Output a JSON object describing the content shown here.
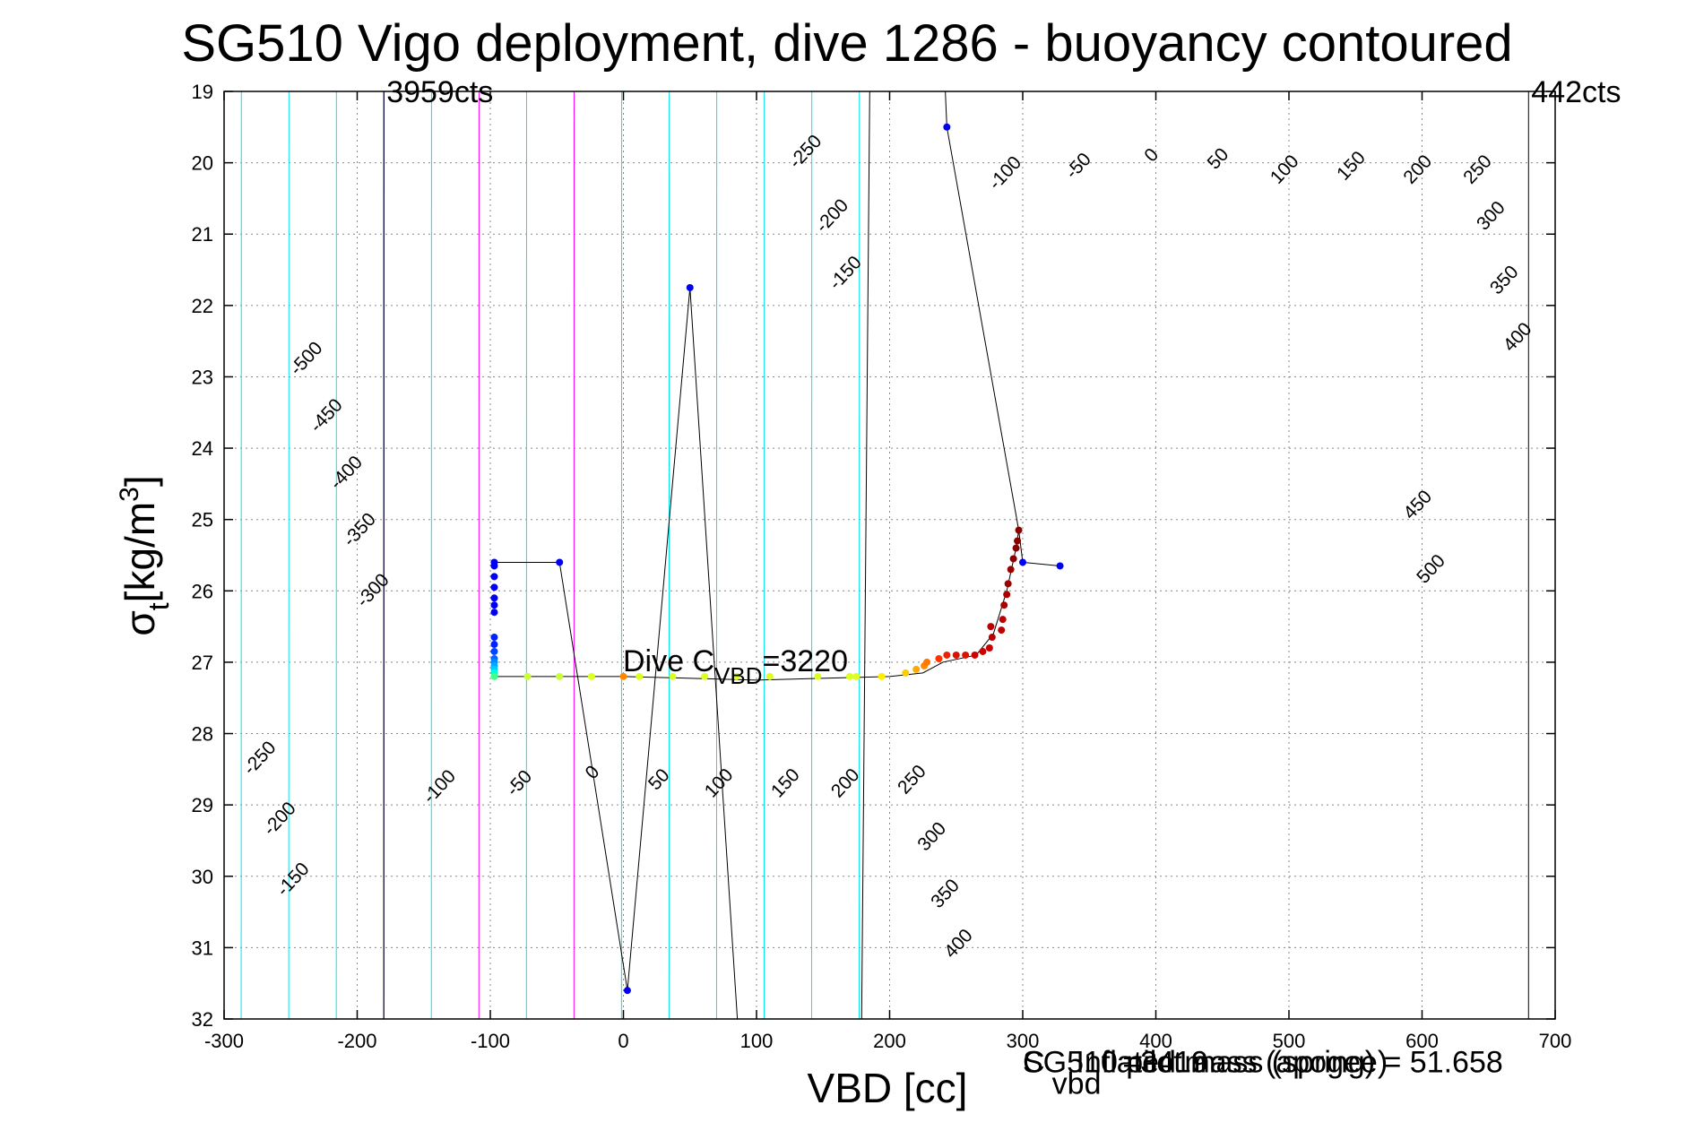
{
  "chart_data": {
    "type": "scatter",
    "title": "SG510 Vigo deployment, dive 1286 - buoyancy contoured",
    "xlabel": "VBD [cc]",
    "ylabel_main": "σ",
    "ylabel_sub": "t",
    "ylabel_unit": "[kg/m",
    "ylabel_sup": "3",
    "ylabel_close": "]",
    "xlim": [
      -300,
      700
    ],
    "ylim": [
      19,
      32
    ],
    "y_reversed": true,
    "grid": true,
    "xticks": [
      -300,
      -200,
      -100,
      0,
      100,
      200,
      300,
      400,
      500,
      600,
      700
    ],
    "yticks": [
      19,
      20,
      21,
      22,
      23,
      24,
      25,
      26,
      27,
      28,
      29,
      30,
      31,
      32
    ],
    "vbd_limits": [
      {
        "vbd": -180,
        "label": "3959cts"
      },
      {
        "vbd": 680,
        "label": "442cts"
      }
    ],
    "dive_cvbd": {
      "vbd": 0,
      "sigma": 27.15,
      "prefix": "Dive C",
      "sub": "VBD",
      "suffix": "=3220"
    },
    "vline_vbd": 181,
    "overlap_texts": [
      {
        "label": "SG510 pilot mass (spring) = 51.658",
        "vbd": 300,
        "sigma": 32.75
      },
      {
        "label": "Inflated mass (apogee)",
        "vbd": 340,
        "sigma": 32.75
      },
      {
        "label": "C",
        "vbd": 300,
        "sigma": 32.75
      },
      {
        "label": "vbd",
        "vbd": 322,
        "sigma": 33.05
      },
      {
        "label": "=3419",
        "vbd": 375,
        "sigma": 32.75
      }
    ],
    "contours": {
      "levels": [
        -500,
        -450,
        -400,
        -350,
        -300,
        -250,
        -200,
        -150,
        -100,
        -50,
        0,
        50,
        100,
        150,
        200,
        250,
        300,
        350,
        400,
        450,
        500
      ],
      "colors": {
        "default": "#00e5ee",
        "zero": "#0000ff",
        "highlight": "#ff00ff"
      },
      "highlight_levels": [
        100,
        200
      ],
      "labels": [
        {
          "text": "-500",
          "vbd": -235,
          "sigma": 22.8
        },
        {
          "text": "-450",
          "vbd": -220,
          "sigma": 23.6
        },
        {
          "text": "-400",
          "vbd": -205,
          "sigma": 24.4
        },
        {
          "text": "-350",
          "vbd": -195,
          "sigma": 25.2
        },
        {
          "text": "-300",
          "vbd": -185,
          "sigma": 26.05
        },
        {
          "text": "-250",
          "vbd": 140,
          "sigma": 19.9
        },
        {
          "text": "-200",
          "vbd": 160,
          "sigma": 20.8
        },
        {
          "text": "-150",
          "vbd": 170,
          "sigma": 21.6
        },
        {
          "text": "-100",
          "vbd": 290,
          "sigma": 20.2
        },
        {
          "text": "-50",
          "vbd": 345,
          "sigma": 20.1
        },
        {
          "text": "0",
          "vbd": 400,
          "sigma": 19.95
        },
        {
          "text": "50",
          "vbd": 450,
          "sigma": 20.0
        },
        {
          "text": "100",
          "vbd": 500,
          "sigma": 20.15
        },
        {
          "text": "150",
          "vbd": 550,
          "sigma": 20.1
        },
        {
          "text": "200",
          "vbd": 600,
          "sigma": 20.15
        },
        {
          "text": "250",
          "vbd": 645,
          "sigma": 20.15
        },
        {
          "text": "300",
          "vbd": 655,
          "sigma": 20.8
        },
        {
          "text": "350",
          "vbd": 665,
          "sigma": 21.7
        },
        {
          "text": "400",
          "vbd": 675,
          "sigma": 22.5
        },
        {
          "text": "450",
          "vbd": 600,
          "sigma": 24.85
        },
        {
          "text": "500",
          "vbd": 610,
          "sigma": 25.75
        },
        {
          "text": "-250",
          "vbd": -270,
          "sigma": 28.4
        },
        {
          "text": "-200",
          "vbd": -255,
          "sigma": 29.25
        },
        {
          "text": "-150",
          "vbd": -245,
          "sigma": 30.1
        },
        {
          "text": "-100",
          "vbd": -135,
          "sigma": 28.8
        },
        {
          "text": "-50",
          "vbd": -75,
          "sigma": 28.75
        },
        {
          "text": "0",
          "vbd": -20,
          "sigma": 28.6
        },
        {
          "text": "50",
          "vbd": 30,
          "sigma": 28.7
        },
        {
          "text": "100",
          "vbd": 75,
          "sigma": 28.75
        },
        {
          "text": "150",
          "vbd": 125,
          "sigma": 28.75
        },
        {
          "text": "200",
          "vbd": 170,
          "sigma": 28.75
        },
        {
          "text": "250",
          "vbd": 220,
          "sigma": 28.7
        },
        {
          "text": "300",
          "vbd": 235,
          "sigma": 29.5
        },
        {
          "text": "350",
          "vbd": 245,
          "sigma": 30.3
        },
        {
          "text": "400",
          "vbd": 255,
          "sigma": 31.0
        }
      ]
    },
    "trajectory": [
      {
        "vbd": 240,
        "sigma": 18.2
      },
      {
        "vbd": 243,
        "sigma": 19.5
      },
      {
        "vbd": 297,
        "sigma": 25.15
      },
      {
        "vbd": 300,
        "sigma": 25.6
      },
      {
        "vbd": 328,
        "sigma": 25.65
      }
    ],
    "trajectory2": [
      {
        "vbd": -97,
        "sigma": 25.6
      },
      {
        "vbd": -48,
        "sigma": 25.6
      },
      {
        "vbd": 3,
        "sigma": 31.6
      },
      {
        "vbd": 50,
        "sigma": 21.75
      },
      {
        "vbd": 87,
        "sigma": 32.4
      }
    ],
    "trajectory3": [
      {
        "vbd": -97,
        "sigma": 27.2
      },
      {
        "vbd": 0,
        "sigma": 27.2
      },
      {
        "vbd": 100,
        "sigma": 27.25
      },
      {
        "vbd": 200,
        "sigma": 27.2
      },
      {
        "vbd": 225,
        "sigma": 27.15
      },
      {
        "vbd": 240,
        "sigma": 27.0
      },
      {
        "vbd": 265,
        "sigma": 26.9
      },
      {
        "vbd": 278,
        "sigma": 26.6
      },
      {
        "vbd": 288,
        "sigma": 26.0
      },
      {
        "vbd": 295,
        "sigma": 25.4
      },
      {
        "vbd": 297,
        "sigma": 25.15
      }
    ],
    "points": [
      {
        "vbd": 243,
        "sigma": 19.5,
        "color": "#0000ee"
      },
      {
        "vbd": 50,
        "sigma": 21.75,
        "color": "#0000ee"
      },
      {
        "vbd": 3,
        "sigma": 31.6,
        "color": "#0000ee"
      },
      {
        "vbd": -48,
        "sigma": 25.6,
        "color": "#0000ee"
      },
      {
        "vbd": 328,
        "sigma": 25.65,
        "color": "#0000ee"
      },
      {
        "vbd": 300,
        "sigma": 25.6,
        "color": "#0000ee"
      },
      {
        "vbd": -97,
        "sigma": 25.6,
        "color": "#0000ee"
      },
      {
        "vbd": -97,
        "sigma": 25.65,
        "color": "#0000ee"
      },
      {
        "vbd": -97,
        "sigma": 25.8,
        "color": "#0000ee"
      },
      {
        "vbd": -97,
        "sigma": 25.95,
        "color": "#0000ee"
      },
      {
        "vbd": -97,
        "sigma": 26.1,
        "color": "#0000ee"
      },
      {
        "vbd": -97,
        "sigma": 26.2,
        "color": "#0000ee"
      },
      {
        "vbd": -97,
        "sigma": 26.3,
        "color": "#0000ee"
      },
      {
        "vbd": -97,
        "sigma": 26.65,
        "color": "#0022ff"
      },
      {
        "vbd": -97,
        "sigma": 26.75,
        "color": "#0022ff"
      },
      {
        "vbd": -97,
        "sigma": 26.85,
        "color": "#0044ff"
      },
      {
        "vbd": -97,
        "sigma": 26.95,
        "color": "#0066ff"
      },
      {
        "vbd": -97,
        "sigma": 27.0,
        "color": "#0088ff"
      },
      {
        "vbd": -97,
        "sigma": 27.05,
        "color": "#00aaff"
      },
      {
        "vbd": -97,
        "sigma": 27.1,
        "color": "#00ccff"
      },
      {
        "vbd": -97,
        "sigma": 27.15,
        "color": "#00ffcc"
      },
      {
        "vbd": -97,
        "sigma": 27.2,
        "color": "#44ff88"
      },
      {
        "vbd": -72,
        "sigma": 27.2,
        "color": "#ccff33"
      },
      {
        "vbd": -48,
        "sigma": 27.2,
        "color": "#ccff33"
      },
      {
        "vbd": -24,
        "sigma": 27.2,
        "color": "#ddff22"
      },
      {
        "vbd": 0,
        "sigma": 27.2,
        "color": "#ff8800"
      },
      {
        "vbd": 12,
        "sigma": 27.2,
        "color": "#ddff22"
      },
      {
        "vbd": 37,
        "sigma": 27.2,
        "color": "#ddff22"
      },
      {
        "vbd": 61,
        "sigma": 27.2,
        "color": "#ddff22"
      },
      {
        "vbd": 85,
        "sigma": 27.2,
        "color": "#ddff22"
      },
      {
        "vbd": 110,
        "sigma": 27.2,
        "color": "#ddff22"
      },
      {
        "vbd": 146,
        "sigma": 27.2,
        "color": "#ddff22"
      },
      {
        "vbd": 170,
        "sigma": 27.2,
        "color": "#ddff22"
      },
      {
        "vbd": 175,
        "sigma": 27.2,
        "color": "#ddff22"
      },
      {
        "vbd": 194,
        "sigma": 27.2,
        "color": "#ffee00"
      },
      {
        "vbd": 212,
        "sigma": 27.15,
        "color": "#ffcc00"
      },
      {
        "vbd": 220,
        "sigma": 27.1,
        "color": "#ffaa00"
      },
      {
        "vbd": 226,
        "sigma": 27.05,
        "color": "#ff8800"
      },
      {
        "vbd": 228,
        "sigma": 27.0,
        "color": "#ff7700"
      },
      {
        "vbd": 237,
        "sigma": 26.95,
        "color": "#ff3300"
      },
      {
        "vbd": 243,
        "sigma": 26.9,
        "color": "#ee2200"
      },
      {
        "vbd": 250,
        "sigma": 26.9,
        "color": "#dd1100"
      },
      {
        "vbd": 257,
        "sigma": 26.9,
        "color": "#dd1100"
      },
      {
        "vbd": 264,
        "sigma": 26.9,
        "color": "#cc0000"
      },
      {
        "vbd": 270,
        "sigma": 26.85,
        "color": "#cc0000"
      },
      {
        "vbd": 275,
        "sigma": 26.8,
        "color": "#cc0000"
      },
      {
        "vbd": 277,
        "sigma": 26.65,
        "color": "#bb0000"
      },
      {
        "vbd": 276,
        "sigma": 26.5,
        "color": "#bb0000"
      },
      {
        "vbd": 284,
        "sigma": 26.55,
        "color": "#bb0000"
      },
      {
        "vbd": 285,
        "sigma": 26.4,
        "color": "#bb0000"
      },
      {
        "vbd": 286,
        "sigma": 26.2,
        "color": "#aa0000"
      },
      {
        "vbd": 288,
        "sigma": 26.05,
        "color": "#aa0000"
      },
      {
        "vbd": 289,
        "sigma": 25.9,
        "color": "#990000"
      },
      {
        "vbd": 291,
        "sigma": 25.7,
        "color": "#990000"
      },
      {
        "vbd": 293,
        "sigma": 25.55,
        "color": "#880000"
      },
      {
        "vbd": 295,
        "sigma": 25.4,
        "color": "#880000"
      },
      {
        "vbd": 296,
        "sigma": 25.3,
        "color": "#880000"
      },
      {
        "vbd": 297,
        "sigma": 25.15,
        "color": "#880000"
      }
    ]
  }
}
